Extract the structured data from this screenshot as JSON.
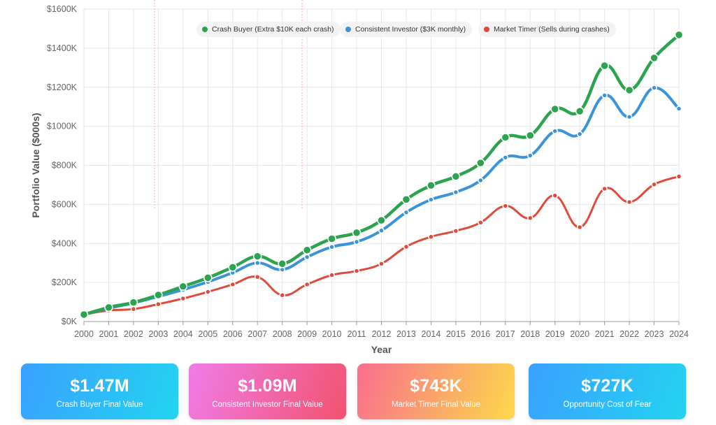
{
  "chart_data": {
    "type": "line",
    "xlabel": "Year",
    "ylabel": "Portfolio Value ($000s)",
    "x": [
      2000,
      2001,
      2002,
      2003,
      2004,
      2005,
      2006,
      2007,
      2008,
      2009,
      2010,
      2011,
      2012,
      2013,
      2014,
      2015,
      2016,
      2017,
      2018,
      2019,
      2020,
      2021,
      2022,
      2023,
      2024
    ],
    "ylim": [
      0,
      1600
    ],
    "yticks": [
      {
        "value": 0,
        "label": "$0K"
      },
      {
        "value": 200,
        "label": "$200K"
      },
      {
        "value": 400,
        "label": "$400K"
      },
      {
        "value": 600,
        "label": "$600K"
      },
      {
        "value": 800,
        "label": "$800K"
      },
      {
        "value": 1000,
        "label": "$1000K"
      },
      {
        "value": 1200,
        "label": "$1200K"
      },
      {
        "value": 1400,
        "label": "$1400K"
      },
      {
        "value": 1600,
        "label": "$1600K"
      }
    ],
    "grid": true,
    "legend_position": "top",
    "series": [
      {
        "name": "Crash Buyer (Extra $10K each crash)",
        "color": "#2ca44f",
        "values": [
          36,
          72,
          98,
          136,
          180,
          224,
          278,
          334,
          296,
          366,
          424,
          455,
          518,
          625,
          697,
          743,
          812,
          943,
          953,
          1088,
          1077,
          1310,
          1185,
          1350,
          1468
        ]
      },
      {
        "name": "Consistent Investor ($3K monthly)",
        "color": "#3b94d9",
        "values": [
          36,
          68,
          95,
          128,
          163,
          203,
          250,
          300,
          266,
          330,
          382,
          408,
          466,
          559,
          624,
          662,
          723,
          840,
          850,
          975,
          960,
          1158,
          1048,
          1197,
          1090
        ]
      },
      {
        "name": "Market Timer (Sells during crashes)",
        "color": "#e04a3a",
        "values": [
          36,
          57,
          64,
          89,
          118,
          152,
          190,
          228,
          135,
          190,
          238,
          259,
          296,
          383,
          434,
          464,
          507,
          592,
          530,
          645,
          483,
          680,
          612,
          702,
          743
        ]
      }
    ]
  },
  "summary_cards": [
    {
      "value": "$1.47M",
      "label": "Crash Buyer Final Value",
      "gradient": [
        "#3aa0ff",
        "#22d4f0"
      ]
    },
    {
      "value": "$1.09M",
      "label": "Consistent Investor Final Value",
      "gradient": [
        "#f07ce9",
        "#f2526e"
      ]
    },
    {
      "value": "$743K",
      "label": "Market Timer Final Value",
      "gradient": [
        "#f96e8e",
        "#fcd94a"
      ]
    },
    {
      "value": "$727K",
      "label": "Opportunity Cost of Fear",
      "gradient": [
        "#3aa0ff",
        "#22d4f0"
      ]
    }
  ]
}
